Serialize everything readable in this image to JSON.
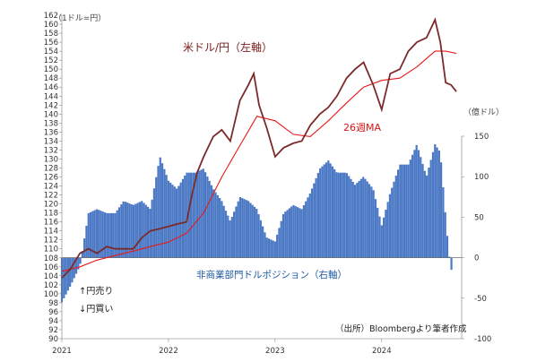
{
  "chart_data": {
    "type": "bar+line",
    "title": "",
    "left_axis": {
      "unit_label": "（1ドル=円）",
      "min": 90,
      "max": 162,
      "step": 2
    },
    "right_axis": {
      "unit_label": "（億ドル）",
      "min": -100,
      "max": 150,
      "step": 50,
      "ticks": [
        "150",
        "100",
        "50",
        "0",
        "-50",
        "-100"
      ]
    },
    "x_axis": {
      "ticks": [
        "2021",
        "2022",
        "2023",
        "2024"
      ],
      "start": 2021.0,
      "end": 2024.75
    },
    "annotations": {
      "usdjpy_label": "米ドル/円（左軸）",
      "ma_label": "26週MA",
      "position_label": "非商業部門ドルポジション（右軸）",
      "yen_sell": "↑円売り",
      "yen_buy": "↓円買い",
      "source": "（出所）Bloombergより筆者作成"
    },
    "series": [
      {
        "name": "米ドル/円（左軸）",
        "type": "line",
        "axis": "left",
        "color": "#7b2a2a",
        "x": [
          2021.0,
          2021.08,
          2021.17,
          2021.25,
          2021.33,
          2021.42,
          2021.5,
          2021.58,
          2021.67,
          2021.75,
          2021.83,
          2021.92,
          2022.0,
          2022.08,
          2022.17,
          2022.22,
          2022.27,
          2022.33,
          2022.42,
          2022.5,
          2022.58,
          2022.67,
          2022.75,
          2022.8,
          2022.85,
          2022.92,
          2023.0,
          2023.08,
          2023.17,
          2023.25,
          2023.33,
          2023.42,
          2023.5,
          2023.58,
          2023.67,
          2023.75,
          2023.83,
          2023.92,
          2024.0,
          2024.08,
          2024.17,
          2024.25,
          2024.33,
          2024.42,
          2024.5,
          2024.55,
          2024.6,
          2024.65,
          2024.7
        ],
        "values": [
          103.5,
          105.5,
          109.0,
          110.0,
          109.0,
          110.5,
          110.0,
          110.0,
          110.0,
          112.5,
          114.0,
          114.5,
          115.0,
          115.5,
          116.0,
          122.0,
          127.0,
          130.5,
          135.0,
          136.5,
          134.0,
          143.0,
          146.5,
          149.0,
          142.0,
          137.0,
          130.5,
          132.5,
          133.5,
          134.0,
          137.5,
          140.0,
          141.5,
          144.0,
          148.0,
          150.0,
          151.5,
          146.5,
          141.0,
          149.0,
          150.0,
          154.0,
          156.0,
          157.0,
          161.0,
          156.0,
          147.0,
          146.5,
          145.0
        ]
      },
      {
        "name": "26週MA",
        "type": "line",
        "axis": "left",
        "color": "#e81818",
        "x": [
          2021.0,
          2021.17,
          2021.33,
          2021.5,
          2021.67,
          2021.83,
          2022.0,
          2022.17,
          2022.33,
          2022.5,
          2022.67,
          2022.83,
          2023.0,
          2023.17,
          2023.33,
          2023.5,
          2023.67,
          2023.83,
          2024.0,
          2024.17,
          2024.33,
          2024.5,
          2024.6,
          2024.7
        ],
        "values": [
          105.0,
          106.0,
          107.5,
          108.5,
          109.5,
          110.5,
          111.5,
          113.5,
          118.0,
          126.0,
          133.0,
          139.5,
          138.5,
          135.5,
          135.0,
          138.5,
          142.5,
          146.0,
          147.5,
          148.0,
          150.5,
          154.0,
          154.0,
          153.5
        ]
      },
      {
        "name": "非商業部門ドルポジション（右軸）",
        "type": "bar",
        "axis": "right",
        "color": "#4a78c4",
        "x": [
          2021.0,
          2021.08,
          2021.17,
          2021.25,
          2021.33,
          2021.42,
          2021.5,
          2021.58,
          2021.67,
          2021.75,
          2021.83,
          2021.92,
          2022.0,
          2022.08,
          2022.17,
          2022.25,
          2022.33,
          2022.42,
          2022.5,
          2022.58,
          2022.67,
          2022.75,
          2022.83,
          2022.92,
          2023.0,
          2023.08,
          2023.17,
          2023.25,
          2023.33,
          2023.42,
          2023.5,
          2023.58,
          2023.67,
          2023.75,
          2023.83,
          2023.92,
          2024.0,
          2024.08,
          2024.17,
          2024.25,
          2024.33,
          2024.42,
          2024.5,
          2024.55,
          2024.6,
          2024.63,
          2024.66
        ],
        "values": [
          -55.0,
          -35.0,
          -10.0,
          55.0,
          60.0,
          55.0,
          55.0,
          70.0,
          65.0,
          70.0,
          60.0,
          125.0,
          95.0,
          85.0,
          105.0,
          105.0,
          110.0,
          85.0,
          70.0,
          45.0,
          75.0,
          70.0,
          60.0,
          25.0,
          20.0,
          55.0,
          65.0,
          60.0,
          80.0,
          110.0,
          120.0,
          105.0,
          105.0,
          90.0,
          100.0,
          85.0,
          40.0,
          80.0,
          115.0,
          115.0,
          140.0,
          100.0,
          140.0,
          130.0,
          50.0,
          5.0,
          -20.0
        ]
      }
    ]
  }
}
